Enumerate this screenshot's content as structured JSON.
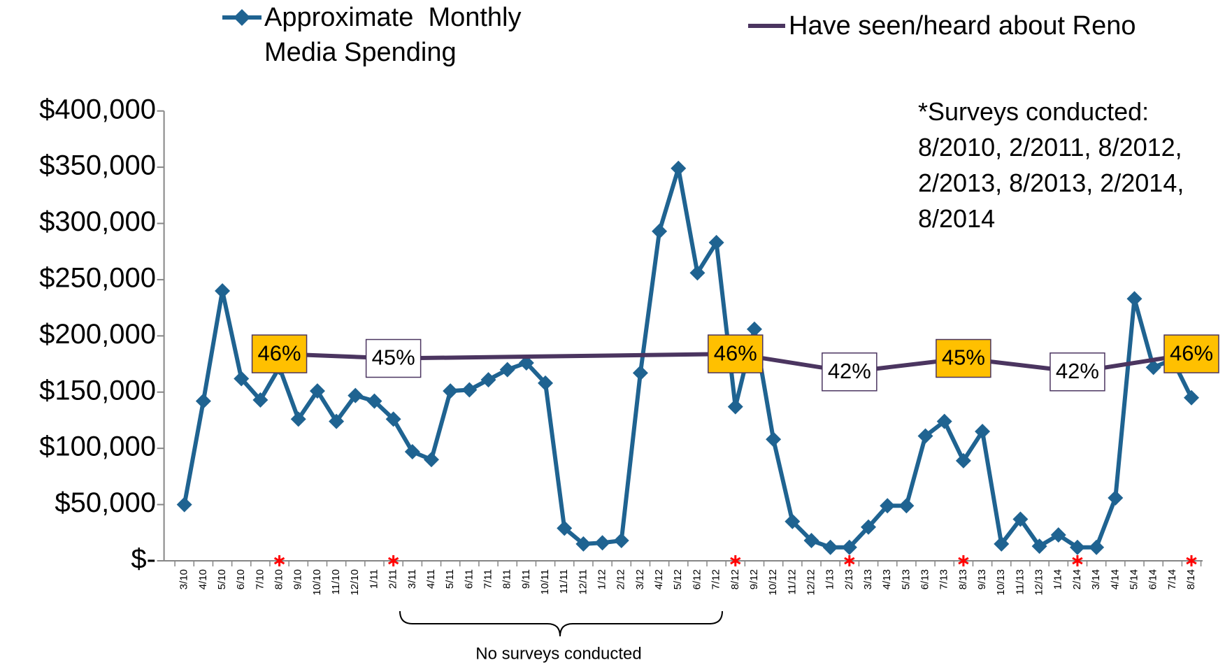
{
  "chart_data": {
    "type": "line",
    "categories": [
      "3/10",
      "4/10",
      "5/10",
      "6/10",
      "7/10",
      "8/10",
      "9/10",
      "10/10",
      "11/10",
      "12/10",
      "1/11",
      "2/11",
      "3/11",
      "4/11",
      "5/11",
      "6/11",
      "7/11",
      "8/11",
      "9/11",
      "10/11",
      "11/11",
      "12/11",
      "1/12",
      "2/12",
      "3/12",
      "4/12",
      "5/12",
      "6/12",
      "7/12",
      "8/12",
      "9/12",
      "10/12",
      "11/12",
      "12/12",
      "1/13",
      "2/13",
      "3/13",
      "4/13",
      "5/13",
      "6/13",
      "7/13",
      "8/13",
      "9/13",
      "10/13",
      "11/13",
      "12/13",
      "1/14",
      "2/14",
      "3/14",
      "4/14",
      "5/14",
      "6/14",
      "7/14",
      "8/14"
    ],
    "series": [
      {
        "name": "Approximate  Monthly Media Spending",
        "color": "#1f6391",
        "marker": "diamond",
        "values": [
          50000,
          142000,
          240000,
          162000,
          143000,
          172000,
          126000,
          151000,
          124000,
          147000,
          142000,
          126000,
          97000,
          90000,
          151000,
          152000,
          161000,
          170000,
          176000,
          158000,
          29000,
          15000,
          16000,
          18000,
          167000,
          293000,
          349000,
          256000,
          283000,
          137000,
          206000,
          108000,
          35000,
          18000,
          12000,
          12000,
          30000,
          49000,
          49000,
          111000,
          124000,
          89000,
          115000,
          15000,
          37000,
          13000,
          23000,
          12000,
          12000,
          56000,
          233000,
          172000,
          179000,
          145000
        ]
      },
      {
        "name": "Have seen/heard about Reno",
        "color": "#4b3560",
        "axis": "y2",
        "x": [
          "8/10",
          "2/11",
          "8/12",
          "2/13",
          "8/13",
          "2/14",
          "8/14"
        ],
        "values": [
          46,
          45,
          46,
          42,
          45,
          42,
          46
        ],
        "value_labels": [
          "46%",
          "45%",
          "46%",
          "42%",
          "45%",
          "42%",
          "46%"
        ],
        "label_colors": [
          "#ffc000",
          "#ffffff",
          "#ffc000",
          "#ffffff",
          "#ffc000",
          "#ffffff",
          "#ffc000"
        ]
      }
    ],
    "ylim": [
      0,
      400000
    ],
    "yticks": [
      {
        "value": 0,
        "label": "$-"
      },
      {
        "value": 50000,
        "label": "$50,000"
      },
      {
        "value": 100000,
        "label": "$100,000"
      },
      {
        "value": 150000,
        "label": "$150,000"
      },
      {
        "value": 200000,
        "label": "$200,000"
      },
      {
        "value": 250000,
        "label": "$250,000"
      },
      {
        "value": 300000,
        "label": "$300,000"
      },
      {
        "value": 350000,
        "label": "$350,000"
      },
      {
        "value": 400000,
        "label": "$400,000"
      }
    ],
    "y2lim": [
      0,
      100
    ],
    "survey_marker_color": "#ff0000",
    "annotation": "*Surveys conducted: 8/2010, 2/2011, 8/2012, 2/2013, 8/2013, 2/2014, 8/2014",
    "brace_label": "No surveys conducted"
  }
}
